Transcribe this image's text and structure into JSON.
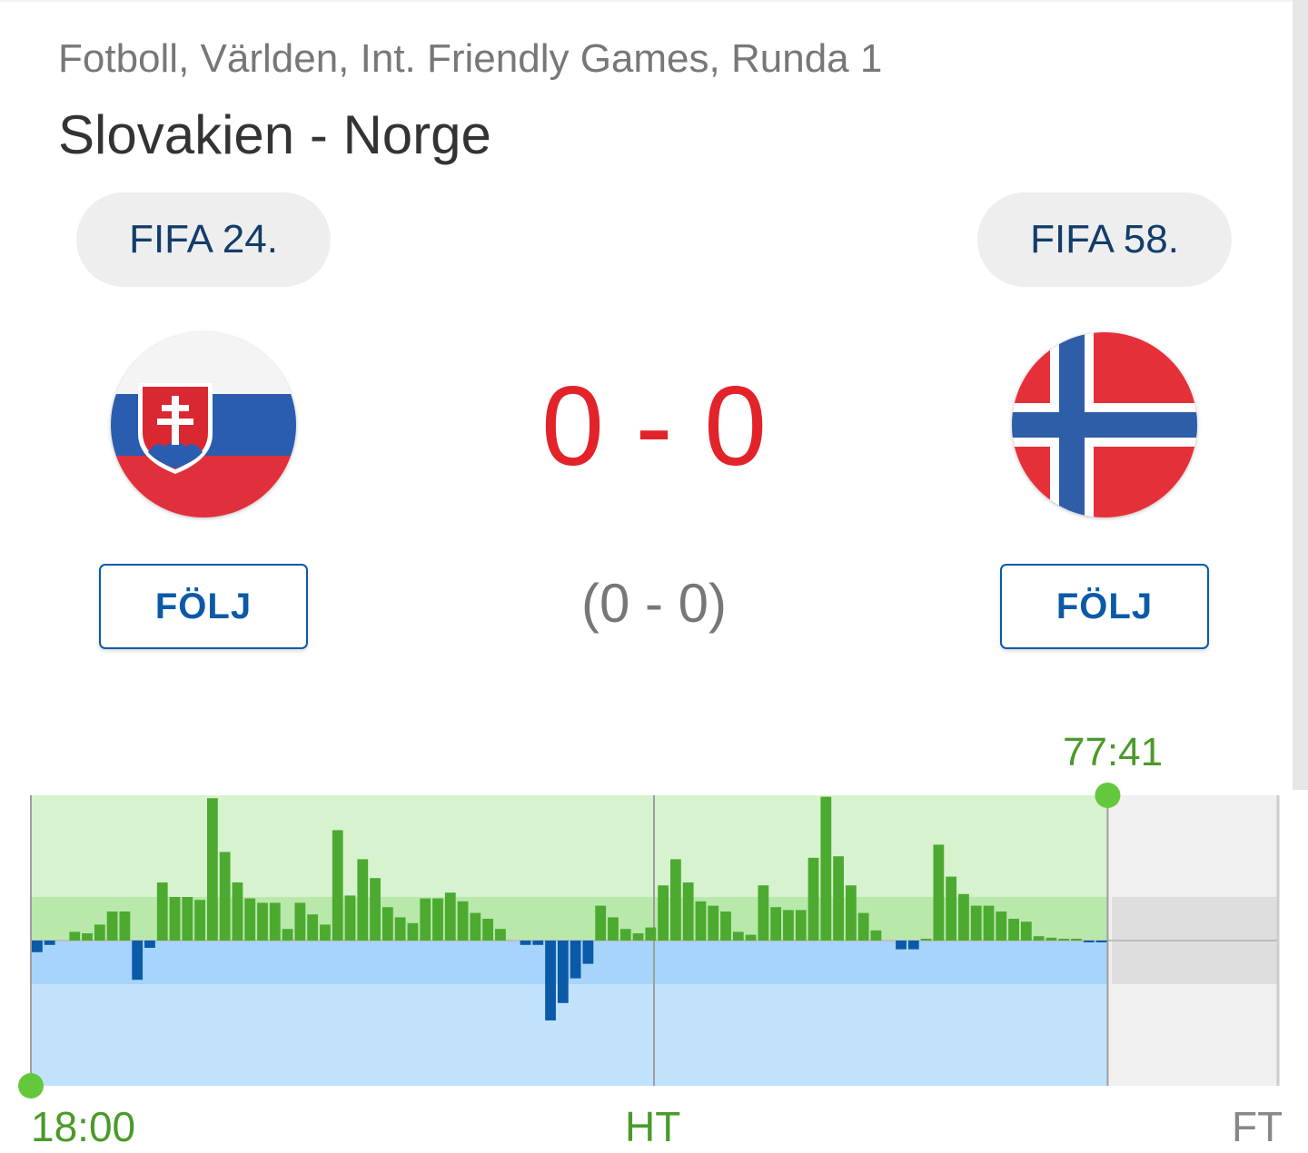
{
  "header": {
    "breadcrumb": "Fotboll, Världen, Int. Friendly Games, Runda 1",
    "title": "Slovakien - Norge"
  },
  "home": {
    "name": "Slovakien",
    "fifa_rank": "FIFA 24.",
    "follow_label": "FÖLJ",
    "flag": "slovakia-flag"
  },
  "away": {
    "name": "Norge",
    "fifa_rank": "FIFA 58.",
    "follow_label": "FÖLJ",
    "flag": "norway-flag"
  },
  "score": {
    "main": "0 - 0",
    "halftime": "(0 - 0)"
  },
  "timeline": {
    "current_time": "77:41",
    "start_label": "18:00",
    "ht_label": "HT",
    "ft_label": "FT",
    "progress": 0.8634,
    "colors": {
      "home_bar": "#0b5aa8",
      "away_bar": "#4caa30",
      "accent": "#64c83c"
    },
    "momentum": [
      -0.08,
      -0.03,
      0,
      0.06,
      0.05,
      0.11,
      0.2,
      0.2,
      -0.27,
      -0.05,
      0.4,
      0.3,
      0.3,
      0.28,
      0.98,
      0.61,
      0.4,
      0.29,
      0.26,
      0.26,
      0.08,
      0.26,
      0.18,
      0.11,
      0.76,
      0.31,
      0.56,
      0.43,
      0.23,
      0.16,
      0.12,
      0.29,
      0.29,
      0.33,
      0.27,
      0.19,
      0.15,
      0.08,
      0,
      -0.03,
      -0.03,
      -0.55,
      -0.43,
      -0.26,
      -0.16,
      0.24,
      0.16,
      0.08,
      0.05,
      0.09,
      0.38,
      0.56,
      0.4,
      0.27,
      0.24,
      0.2,
      0.06,
      0.04,
      0.38,
      0.23,
      0.21,
      0.21,
      0.57,
      0.99,
      0.58,
      0.38,
      0.19,
      0.07,
      0,
      -0.06,
      -0.06,
      0.01,
      0.66,
      0.44,
      0.32,
      0.24,
      0.24,
      0.2,
      0.15,
      0.13,
      0.03,
      0.02,
      0.01,
      0.01,
      -0.01,
      -0.01
    ]
  }
}
